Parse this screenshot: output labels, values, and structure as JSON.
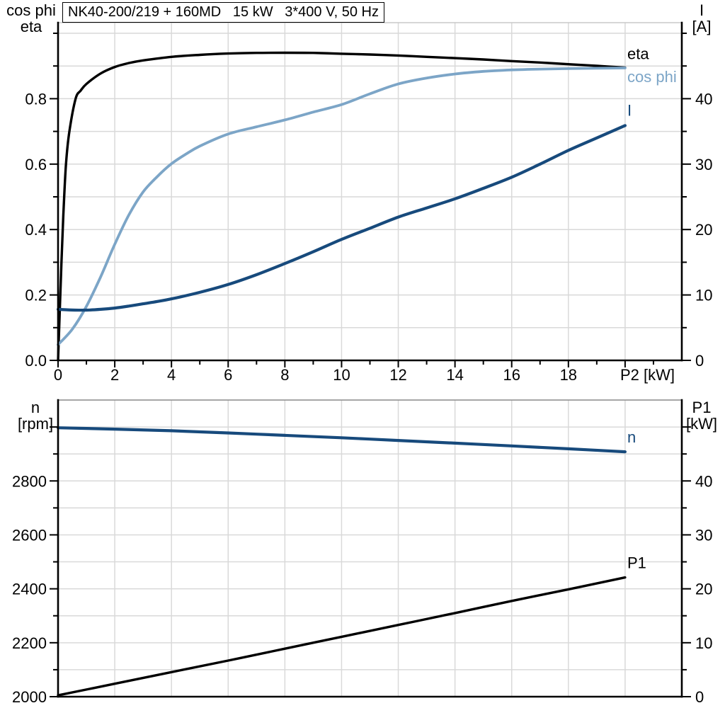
{
  "title": "NK40-200/219 + 160MD   15 kW   3*400 V, 50 Hz",
  "colors": {
    "eta": "#000000",
    "cos_phi": "#7CA5C7",
    "current": "#174A7C",
    "speed": "#174A7C",
    "p1": "#000000",
    "grid": "#D9D9D9",
    "axis": "#000000",
    "frame_top_light": "#C8C8C8",
    "frame_top_dark": "#8A8A8A",
    "text": "#000000"
  },
  "chart_data": [
    {
      "name": "motor-performance-vs-p2",
      "type": "line",
      "x": {
        "label": "P2 [kW]",
        "min": 0,
        "max": 22,
        "grid_step": 2,
        "minor_tick_step": 1,
        "major_ticks": [
          {
            "v": 0,
            "label": "0"
          },
          {
            "v": 2,
            "label": "2"
          },
          {
            "v": 4,
            "label": "4"
          },
          {
            "v": 6,
            "label": "6"
          },
          {
            "v": 8,
            "label": "8"
          },
          {
            "v": 10,
            "label": "10"
          },
          {
            "v": 12,
            "label": "12"
          },
          {
            "v": 14,
            "label": "14"
          },
          {
            "v": 16,
            "label": "16"
          },
          {
            "v": 18,
            "label": "18"
          },
          {
            "v": 20,
            "label": ""
          }
        ]
      },
      "y_left": {
        "title": [
          "cos phi",
          "eta"
        ],
        "min": 0,
        "grid_max": 1.0,
        "grid_step": 0.1,
        "minor_tick_step": 0.1,
        "major_ticks": [
          {
            "v": 0.0,
            "label": "0.0"
          },
          {
            "v": 0.2,
            "label": "0.2"
          },
          {
            "v": 0.4,
            "label": "0.4"
          },
          {
            "v": 0.6,
            "label": "0.6"
          },
          {
            "v": 0.8,
            "label": "0.8"
          }
        ]
      },
      "y_right": {
        "title": [
          "I",
          "[A]"
        ],
        "min": 0,
        "grid_max": 50,
        "minor_tick_step": 5,
        "major_ticks": [
          {
            "v": 0,
            "label": "0"
          },
          {
            "v": 10,
            "label": "10"
          },
          {
            "v": 20,
            "label": "20"
          },
          {
            "v": 30,
            "label": "30"
          },
          {
            "v": 40,
            "label": "40"
          }
        ]
      },
      "series": [
        {
          "name": "eta",
          "label": "eta",
          "axis": "left",
          "color_key": "eta",
          "points": [
            [
              0,
              0
            ],
            [
              0.12,
              0.3
            ],
            [
              0.2,
              0.47
            ],
            [
              0.28,
              0.6
            ],
            [
              0.4,
              0.7
            ],
            [
              0.62,
              0.8
            ],
            [
              0.8,
              0.825
            ],
            [
              1,
              0.845
            ],
            [
              1.5,
              0.877
            ],
            [
              2,
              0.897
            ],
            [
              2.5,
              0.909
            ],
            [
              3,
              0.917
            ],
            [
              4,
              0.928
            ],
            [
              5,
              0.934
            ],
            [
              6,
              0.938
            ],
            [
              7,
              0.94
            ],
            [
              8,
              0.9405
            ],
            [
              9,
              0.94
            ],
            [
              10,
              0.9375
            ],
            [
              11,
              0.935
            ],
            [
              12,
              0.932
            ],
            [
              13,
              0.928
            ],
            [
              14,
              0.924
            ],
            [
              15,
              0.92
            ],
            [
              16,
              0.915
            ],
            [
              17,
              0.9105
            ],
            [
              18,
              0.9055
            ],
            [
              19,
              0.9005
            ],
            [
              20,
              0.895
            ]
          ]
        },
        {
          "name": "cos phi",
          "label": "cos phi",
          "axis": "left",
          "color_key": "cos_phi",
          "points": [
            [
              0,
              0.048
            ],
            [
              0.5,
              0.095
            ],
            [
              1,
              0.165
            ],
            [
              1.5,
              0.255
            ],
            [
              2,
              0.355
            ],
            [
              2.5,
              0.445
            ],
            [
              3,
              0.515
            ],
            [
              3.5,
              0.562
            ],
            [
              4,
              0.601
            ],
            [
              4.5,
              0.63
            ],
            [
              5,
              0.655
            ],
            [
              6,
              0.692
            ],
            [
              7,
              0.714
            ],
            [
              8,
              0.735
            ],
            [
              9,
              0.759
            ],
            [
              10,
              0.782
            ],
            [
              11,
              0.815
            ],
            [
              12,
              0.845
            ],
            [
              13,
              0.863
            ],
            [
              14,
              0.8755
            ],
            [
              15,
              0.8835
            ],
            [
              16,
              0.888
            ],
            [
              17,
              0.8905
            ],
            [
              18,
              0.892
            ],
            [
              19,
              0.893
            ],
            [
              20,
              0.894
            ]
          ]
        },
        {
          "name": "I",
          "label": "I",
          "axis": "right",
          "color_key": "current",
          "points": [
            [
              0,
              7.8
            ],
            [
              0.5,
              7.7
            ],
            [
              1,
              7.68
            ],
            [
              1.5,
              7.8
            ],
            [
              2,
              8.0
            ],
            [
              2.5,
              8.3
            ],
            [
              3,
              8.65
            ],
            [
              3.5,
              9.0
            ],
            [
              4,
              9.4
            ],
            [
              5,
              10.4
            ],
            [
              6,
              11.6
            ],
            [
              7,
              13.1
            ],
            [
              8,
              14.8
            ],
            [
              9,
              16.6
            ],
            [
              10,
              18.5
            ],
            [
              11,
              20.2
            ],
            [
              12,
              21.9
            ],
            [
              13,
              23.3
            ],
            [
              14,
              24.7
            ],
            [
              15,
              26.3
            ],
            [
              16,
              28.0
            ],
            [
              17,
              30.0
            ],
            [
              18,
              32.1
            ],
            [
              19,
              34.0
            ],
            [
              20,
              35.9
            ]
          ]
        }
      ]
    },
    {
      "name": "speed-and-input-power-vs-p2",
      "type": "line",
      "x": {
        "label": "",
        "min": 0,
        "max": 22,
        "grid_step": 2,
        "minor_tick_step": 0,
        "major_ticks": []
      },
      "y_left": {
        "title": [
          "n",
          "[rpm]"
        ],
        "min": 2000,
        "grid_max": 3100,
        "grid_step": 100,
        "minor_tick_step": 100,
        "major_ticks": [
          {
            "v": 2000,
            "label": "2000"
          },
          {
            "v": 2200,
            "label": "2200"
          },
          {
            "v": 2400,
            "label": "2400"
          },
          {
            "v": 2600,
            "label": "2600"
          },
          {
            "v": 2800,
            "label": "2800"
          },
          {
            "v": 3000,
            "label": ""
          }
        ]
      },
      "y_right": {
        "title": [
          "P1",
          "[kW]"
        ],
        "min": 0,
        "grid_max": 55,
        "minor_tick_step": 5,
        "major_ticks": [
          {
            "v": 0,
            "label": "0"
          },
          {
            "v": 10,
            "label": "10"
          },
          {
            "v": 20,
            "label": "20"
          },
          {
            "v": 30,
            "label": "30"
          },
          {
            "v": 40,
            "label": "40"
          },
          {
            "v": 50,
            "label": ""
          }
        ]
      },
      "series": [
        {
          "name": "n",
          "label": "n",
          "axis": "left",
          "color_key": "speed",
          "points": [
            [
              0,
              2997
            ],
            [
              2,
              2992
            ],
            [
              4,
              2986
            ],
            [
              6,
              2978
            ],
            [
              8,
              2969
            ],
            [
              10,
              2960
            ],
            [
              12,
              2950
            ],
            [
              14,
              2940
            ],
            [
              16,
              2930
            ],
            [
              18,
              2919
            ],
            [
              20,
              2908
            ]
          ]
        },
        {
          "name": "P1",
          "label": "P1",
          "axis": "right",
          "color_key": "p1",
          "points": [
            [
              0,
              0.25
            ],
            [
              2,
              2.4
            ],
            [
              4,
              4.55
            ],
            [
              6,
              6.7
            ],
            [
              8,
              8.9
            ],
            [
              10,
              11.1
            ],
            [
              12,
              13.3
            ],
            [
              14,
              15.5
            ],
            [
              16,
              17.75
            ],
            [
              18,
              19.9
            ],
            [
              20,
              22.1
            ]
          ]
        }
      ]
    }
  ]
}
